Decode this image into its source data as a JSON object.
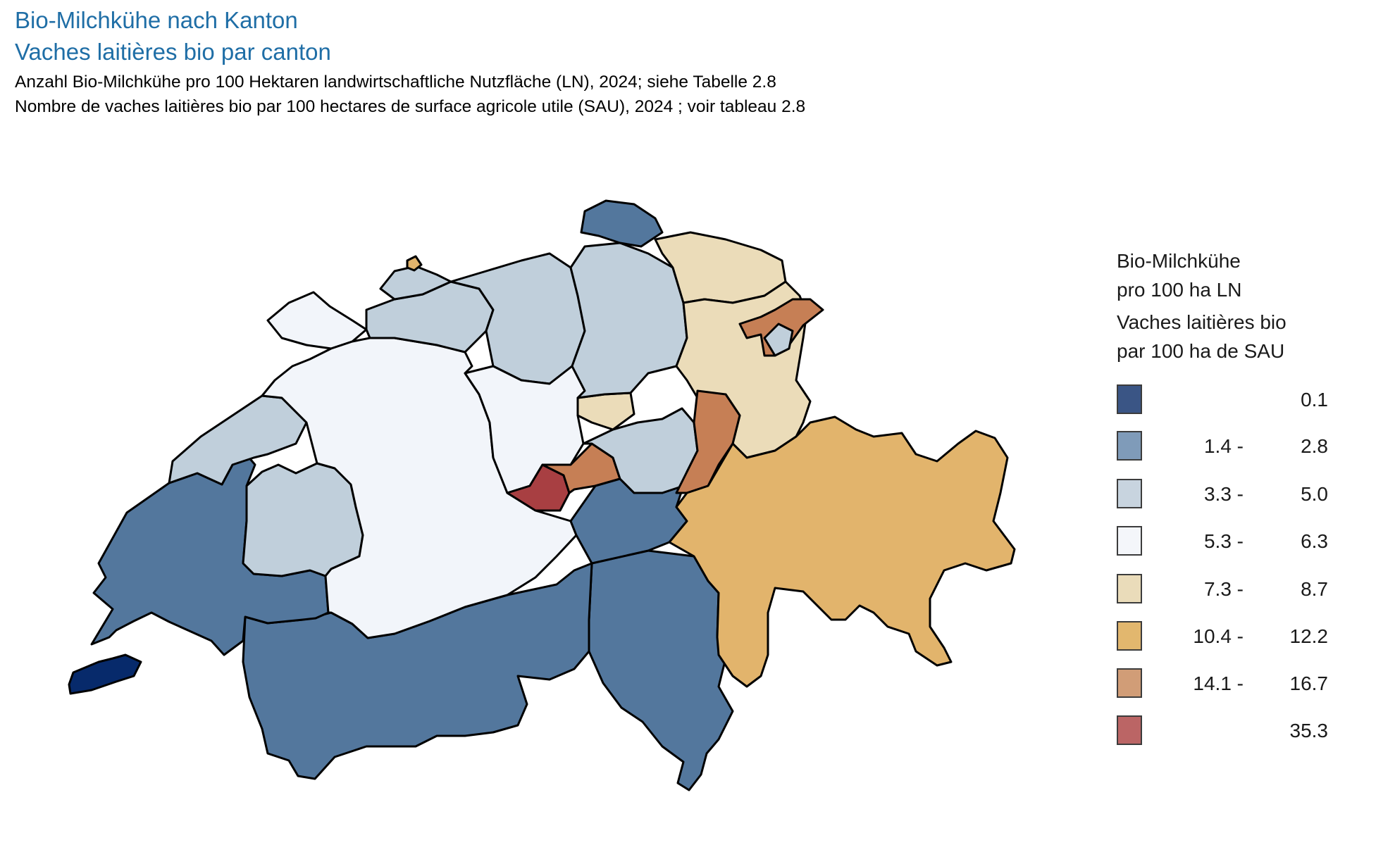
{
  "header": {
    "title_de": "Bio-Milchkühe nach Kanton",
    "title_fr": "Vaches laitières bio par canton",
    "subtitle_de": "Anzahl Bio-Milchkühe pro 100 Hektaren landwirtschaftliche Nutzfläche (LN), 2024; siehe Tabelle 2.8",
    "subtitle_fr": "Nombre de vaches laitières bio par 100 hectares de surface agricole utile (SAU), 2024 ; voir tableau 2.8"
  },
  "legend": {
    "title_de_line1": "Bio-Milchkühe",
    "title_de_line2": "pro 100 ha LN",
    "title_fr_line1": "Vaches laitières bio",
    "title_fr_line2": "par 100 ha de SAU",
    "classes": [
      {
        "low": "",
        "high": "0.1",
        "color": "#3a5585"
      },
      {
        "low": "1.4 -",
        "high": "2.8",
        "color": "#7f9bb9"
      },
      {
        "low": "3.3 -",
        "high": "5.0",
        "color": "#c8d4df"
      },
      {
        "low": "5.3 -",
        "high": "6.3",
        "color": "#f4f6fa"
      },
      {
        "low": "7.3 -",
        "high": "8.7",
        "color": "#eadcba"
      },
      {
        "low": "10.4 -",
        "high": "12.2",
        "color": "#e2b76e"
      },
      {
        "low": "14.1 -",
        "high": "16.7",
        "color": "#d19d77"
      },
      {
        "low": "",
        "high": "35.3",
        "color": "#bb6565"
      }
    ]
  },
  "map_fills": {
    "class0": "#072a6b",
    "class1": "#53779d",
    "class2": "#c0cfdb",
    "class3": "#f2f5fa",
    "class4": "#ebdcb9",
    "class5": "#e2b46c",
    "class6": "#c67f55",
    "class7": "#a83f42"
  }
}
